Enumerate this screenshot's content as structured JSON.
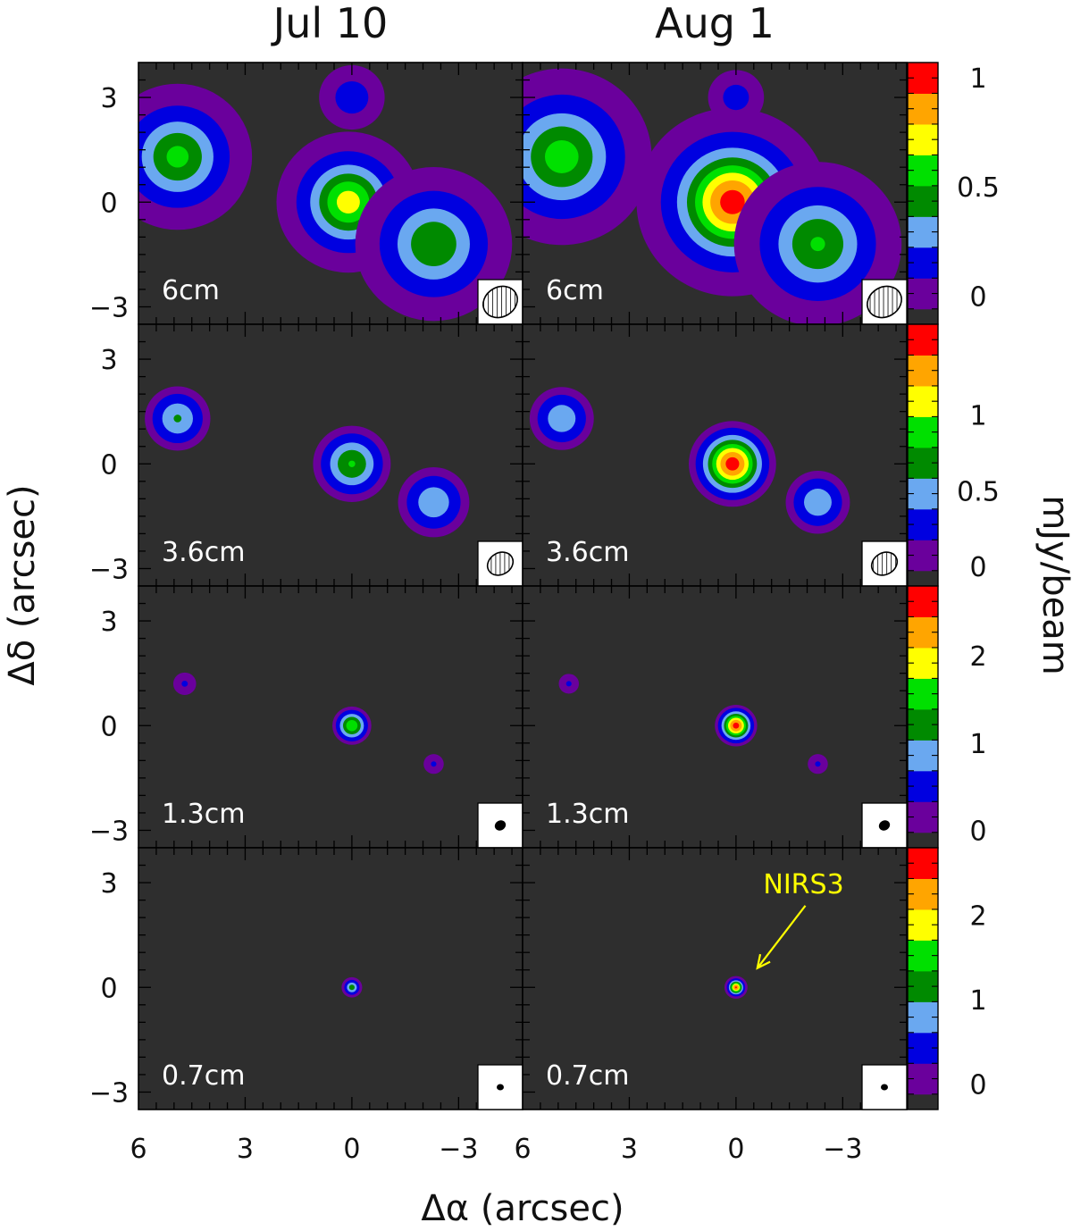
{
  "column_titles": [
    "Jul 10",
    "Aug 1"
  ],
  "axes": {
    "xlabel": "Δα (arcsec)",
    "ylabel": "Δδ (arcsec)",
    "xticks": [
      6,
      3,
      0,
      -3
    ],
    "xtick_labels": [
      "6",
      "3",
      "0",
      "−3"
    ],
    "yticks": [
      3,
      0,
      -3
    ],
    "ytick_labels": [
      "3",
      "0",
      "−3"
    ],
    "xlim": [
      6,
      -4.8
    ],
    "ylim": [
      -3.5,
      4.0
    ]
  },
  "colorbar_label": "mJy/beam",
  "colors": {
    "background": "#2e2e2e",
    "contour": "#ffffff",
    "annotation": "#ffff00",
    "colormap": [
      "#2e2e2e",
      "#6a009c",
      "#6a009c",
      "#0000e0",
      "#0000e0",
      "#6aa8f0",
      "#6aa8f0",
      "#008a00",
      "#008a00",
      "#00e000",
      "#00e000",
      "#ffff00",
      "#ffff00",
      "#ffa500",
      "#ffa500",
      "#ff0000",
      "#ff0000"
    ]
  },
  "chart_data": {
    "type": "heatmap",
    "rows": [
      {
        "band": "6cm",
        "colorbar": {
          "min": -0.13,
          "max": 1.07,
          "ticks": [
            0,
            0.5,
            1
          ],
          "tick_labels": [
            "0",
            "0.5",
            "1"
          ]
        },
        "beam": {
          "major": 1.0,
          "minor": 0.85,
          "pa": 30
        },
        "panels": [
          {
            "epoch": "Jul 10",
            "sources": [
              {
                "x": 4.9,
                "y": 1.3,
                "peak": 0.55,
                "size": 0.75
              },
              {
                "x": 0.1,
                "y": 0.0,
                "peak": 0.72,
                "size": 0.7
              },
              {
                "x": -2.3,
                "y": -1.2,
                "peak": 0.5,
                "size": 0.8
              },
              {
                "x": 0.0,
                "y": 3.0,
                "peak": 0.16,
                "size": 0.4
              }
            ]
          },
          {
            "epoch": "Aug 1",
            "sources": [
              {
                "x": 4.9,
                "y": 1.3,
                "peak": 0.58,
                "size": 0.9
              },
              {
                "x": 0.1,
                "y": 0.0,
                "peak": 1.0,
                "size": 0.9
              },
              {
                "x": -2.3,
                "y": -1.2,
                "peak": 0.52,
                "size": 0.85
              },
              {
                "x": 0.0,
                "y": 3.0,
                "peak": 0.14,
                "size": 0.35
              }
            ]
          }
        ]
      },
      {
        "band": "3.6cm",
        "colorbar": {
          "min": -0.13,
          "max": 1.6,
          "ticks": [
            0,
            0.5,
            1
          ],
          "tick_labels": [
            "0",
            "0.5",
            "1"
          ]
        },
        "beam": {
          "major": 0.75,
          "minor": 0.62,
          "pa": 30
        },
        "panels": [
          {
            "epoch": "Jul 10",
            "sources": [
              {
                "x": 4.9,
                "y": 1.3,
                "peak": 0.6,
                "size": 0.45
              },
              {
                "x": 0.0,
                "y": 0.0,
                "peak": 0.8,
                "size": 0.5
              },
              {
                "x": -2.3,
                "y": -1.1,
                "peak": 0.55,
                "size": 0.5
              }
            ]
          },
          {
            "epoch": "Aug 1",
            "sources": [
              {
                "x": 4.9,
                "y": 1.3,
                "peak": 0.55,
                "size": 0.45
              },
              {
                "x": 0.1,
                "y": 0.0,
                "peak": 1.5,
                "size": 0.5
              },
              {
                "x": -2.3,
                "y": -1.1,
                "peak": 0.55,
                "size": 0.45
              }
            ]
          }
        ]
      },
      {
        "band": "1.3cm",
        "colorbar": {
          "min": -0.2,
          "max": 2.8,
          "ticks": [
            0,
            1,
            2
          ],
          "tick_labels": [
            "0",
            "1",
            "2"
          ]
        },
        "beam": {
          "major": 0.28,
          "minor": 0.24,
          "pa": 30
        },
        "panels": [
          {
            "epoch": "Jul 10",
            "sources": [
              {
                "x": 4.7,
                "y": 1.2,
                "peak": 0.35,
                "size": 0.25
              },
              {
                "x": 0.0,
                "y": 0.0,
                "peak": 1.7,
                "size": 0.25
              },
              {
                "x": -2.3,
                "y": -1.1,
                "peak": 0.35,
                "size": 0.22
              }
            ]
          },
          {
            "epoch": "Aug 1",
            "sources": [
              {
                "x": 4.7,
                "y": 1.2,
                "peak": 0.35,
                "size": 0.22
              },
              {
                "x": 0.0,
                "y": 0.0,
                "peak": 2.6,
                "size": 0.25
              },
              {
                "x": -2.3,
                "y": -1.1,
                "peak": 0.35,
                "size": 0.22
              }
            ]
          }
        ]
      },
      {
        "band": "0.7cm",
        "colorbar": {
          "min": -0.3,
          "max": 2.8,
          "ticks": [
            0,
            1,
            2
          ],
          "tick_labels": [
            "0",
            "1",
            "2"
          ]
        },
        "beam": {
          "major": 0.16,
          "minor": 0.14,
          "pa": 0
        },
        "panels": [
          {
            "epoch": "Jul 10",
            "sources": [
              {
                "x": 0.0,
                "y": 0.0,
                "peak": 1.2,
                "size": 0.12
              }
            ]
          },
          {
            "epoch": "Aug 1",
            "sources": [
              {
                "x": 0.0,
                "y": 0.0,
                "peak": 2.5,
                "size": 0.12
              }
            ]
          }
        ]
      }
    ],
    "annotations": [
      {
        "text": "NIRS3",
        "panel_row": 3,
        "panel_col": 1,
        "label_x": -1.9,
        "label_y": 2.7,
        "arrow_to_x": -0.6,
        "arrow_to_y": 0.55
      }
    ]
  }
}
